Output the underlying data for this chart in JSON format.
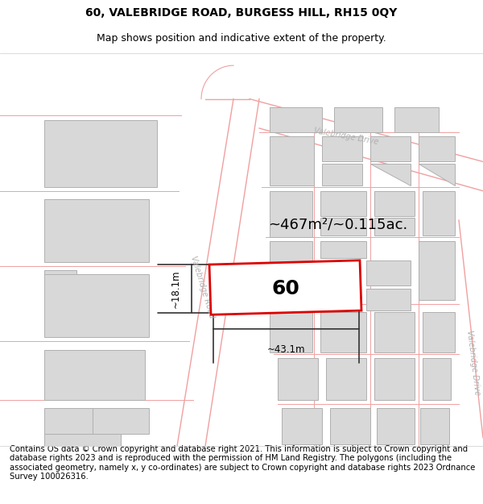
{
  "title": "60, VALEBRIDGE ROAD, BURGESS HILL, RH15 0QY",
  "subtitle": "Map shows position and indicative extent of the property.",
  "footer_text": "Contains OS data © Crown copyright and database right 2021. This information is subject to Crown copyright and database rights 2023 and is reproduced with the permission of HM Land Registry. The polygons (including the associated geometry, namely x, y co-ordinates) are subject to Crown copyright and database rights 2023 Ordnance Survey 100026316.",
  "bg_color": "#ffffff",
  "map_bg": "#ffffff",
  "road_line_color": "#f0a0a0",
  "building_fill": "#d8d8d8",
  "building_edge": "#b0b0b0",
  "highlight_fill": "#ffffff",
  "highlight_edge": "#dd0000",
  "road_label_color": "#b0b0b0",
  "area_text": "~467m²/~0.115ac.",
  "number_text": "60",
  "width_label": "~43.1m",
  "height_label": "~18.1m",
  "title_fontsize": 10,
  "subtitle_fontsize": 9,
  "footer_fontsize": 7.2
}
